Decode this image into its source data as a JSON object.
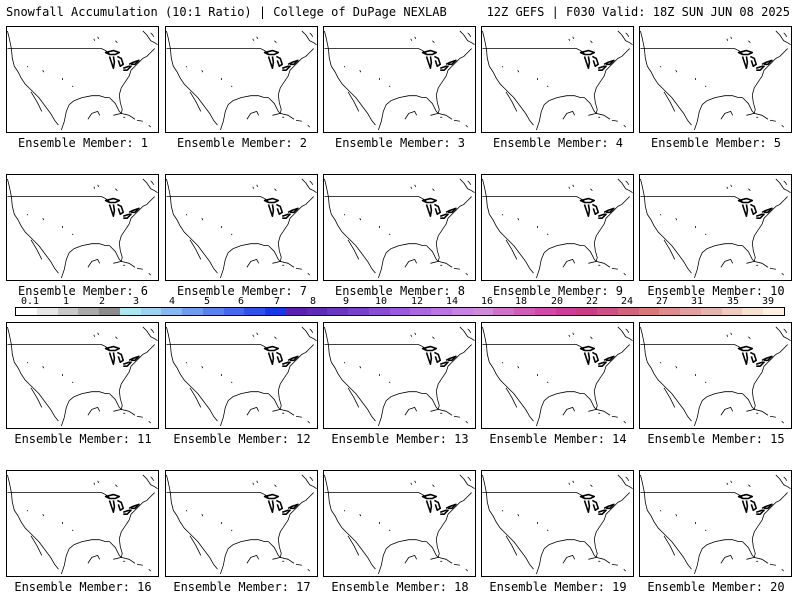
{
  "header": {
    "left": "Snowfall Accumulation (10:1 Ratio) | College of DuPage NEXLAB",
    "right": "12Z GEFS | F030 Valid: 18Z SUN JUN 08 2025"
  },
  "panels": [
    {
      "label": "Ensemble Member: 1"
    },
    {
      "label": "Ensemble Member: 2"
    },
    {
      "label": "Ensemble Member: 3"
    },
    {
      "label": "Ensemble Member: 4"
    },
    {
      "label": "Ensemble Member: 5"
    },
    {
      "label": "Ensemble Member: 6"
    },
    {
      "label": "Ensemble Member: 7"
    },
    {
      "label": "Ensemble Member: 8"
    },
    {
      "label": "Ensemble Member: 9"
    },
    {
      "label": "Ensemble Member: 10"
    },
    {
      "label": "Ensemble Member: 11"
    },
    {
      "label": "Ensemble Member: 12"
    },
    {
      "label": "Ensemble Member: 13"
    },
    {
      "label": "Ensemble Member: 14"
    },
    {
      "label": "Ensemble Member: 15"
    },
    {
      "label": "Ensemble Member: 16"
    },
    {
      "label": "Ensemble Member: 17"
    },
    {
      "label": "Ensemble Member: 18"
    },
    {
      "label": "Ensemble Member: 19"
    },
    {
      "label": "Ensemble Member: 20"
    }
  ],
  "colorbar": {
    "labels": [
      "0.1",
      "1",
      "2",
      "3",
      "4",
      "5",
      "6",
      "7",
      "8",
      "9",
      "10",
      "12",
      "14",
      "16",
      "18",
      "20",
      "22",
      "24",
      "27",
      "31",
      "35",
      "39"
    ],
    "colors": [
      "#ffffff",
      "#e6e6e6",
      "#c8c8c8",
      "#a9a9a9",
      "#8c8c8c",
      "#aae6ee",
      "#9bd2f0",
      "#86b8f2",
      "#6e9df0",
      "#5a82ee",
      "#4668ec",
      "#3050ea",
      "#1a37e6",
      "#5a1fb0",
      "#5e2bb6",
      "#6a35c0",
      "#7840c8",
      "#8a4cd2",
      "#9a58dc",
      "#ab66e0",
      "#bb74e4",
      "#c882e4",
      "#d08ad8",
      "#d070c8",
      "#d05cb8",
      "#d048a8",
      "#cc3c98",
      "#c83c88",
      "#cc5084",
      "#d0647c",
      "#d87878",
      "#dc8c8c",
      "#e0a0a0",
      "#e6b4b0",
      "#eecac0",
      "#f6e0d0",
      "#fcf0e4"
    ]
  }
}
